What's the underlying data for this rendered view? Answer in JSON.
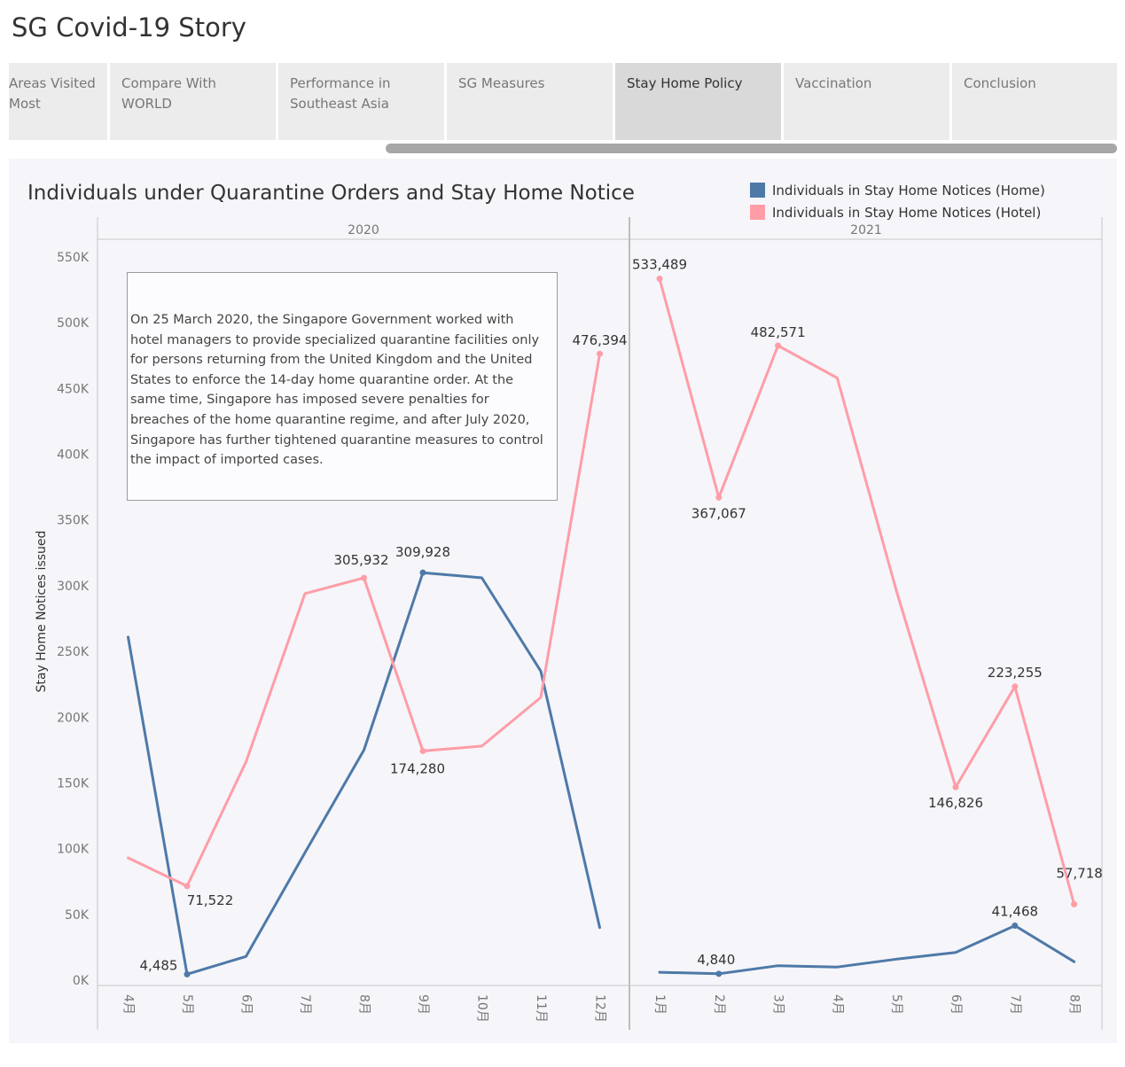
{
  "story": {
    "title": "SG Covid-19 Story",
    "tabs": [
      {
        "label": "Areas Visited Most",
        "active": false
      },
      {
        "label": "Compare With  WORLD",
        "active": false
      },
      {
        "label": "Performance in Southeast Asia",
        "active": false
      },
      {
        "label": "SG Measures",
        "active": false
      },
      {
        "label": "Stay Home Policy",
        "active": true
      },
      {
        "label": "Vaccination",
        "active": false
      },
      {
        "label": "Conclusion",
        "active": false
      }
    ]
  },
  "annotation": "On 25 March 2020, the Singapore Government worked with hotel managers to provide specialized quarantine facilities only for persons returning from the United Kingdom and the United States to enforce the 14-day home quarantine order. At the same time, Singapore has imposed severe penalties for breaches of the home quarantine regime, and after July 2020, Singapore has further tightened quarantine measures to control the impact of imported cases.",
  "colors": {
    "home": "#4e79a7",
    "hotel": "#ff9da7",
    "background": "#f5f5fa"
  },
  "chart_data": {
    "type": "line",
    "title": "Individuals under Quarantine Orders and Stay Home Notice",
    "ylabel": "Stay Home Notices issued",
    "ylim": [
      0,
      550000
    ],
    "y_ticks": [
      "0K",
      "50K",
      "100K",
      "150K",
      "200K",
      "250K",
      "300K",
      "350K",
      "400K",
      "450K",
      "500K",
      "550K"
    ],
    "y_tick_values": [
      0,
      50000,
      100000,
      150000,
      200000,
      250000,
      300000,
      350000,
      400000,
      450000,
      500000,
      550000
    ],
    "legend_position": "top-right",
    "grid": false,
    "panels": [
      {
        "label": "2020",
        "categories": [
          "4月",
          "5月",
          "6月",
          "7月",
          "8月",
          "9月",
          "10月",
          "11月",
          "12月"
        ],
        "series": [
          {
            "name": "Individuals in Stay Home Notices (Home)",
            "color": "#4e79a7",
            "values": [
              261000,
              4485,
              18000,
              97000,
              175000,
              309928,
              306000,
              235000,
              40000
            ],
            "labels": [
              null,
              "4,485",
              null,
              null,
              null,
              "309,928",
              null,
              null,
              null
            ]
          },
          {
            "name": "Individuals in Stay Home Notices (Hotel)",
            "color": "#ff9da7",
            "values": [
              93000,
              71522,
              166000,
              294000,
              305932,
              174280,
              178000,
              215000,
              476394
            ],
            "labels": [
              null,
              "71,522",
              null,
              null,
              "305,932",
              "174,280",
              null,
              null,
              "476,394"
            ]
          }
        ]
      },
      {
        "label": "2021",
        "categories": [
          "1月",
          "2月",
          "3月",
          "4月",
          "5月",
          "6月",
          "7月",
          "8月"
        ],
        "series": [
          {
            "name": "Individuals in Stay Home Notices (Home)",
            "color": "#4e79a7",
            "values": [
              6000,
              4840,
              11000,
              10000,
              16000,
              21000,
              41468,
              14000
            ],
            "labels": [
              null,
              "4,840",
              null,
              null,
              null,
              null,
              "41,468",
              null
            ]
          },
          {
            "name": "Individuals in Stay Home Notices (Hotel)",
            "color": "#ff9da7",
            "values": [
              533489,
              367067,
              482571,
              458000,
              296000,
              146826,
              223255,
              57718
            ],
            "labels": [
              "533,489",
              "367,067",
              "482,571",
              null,
              null,
              "146,826",
              "223,255",
              "57,718"
            ]
          }
        ]
      }
    ]
  }
}
